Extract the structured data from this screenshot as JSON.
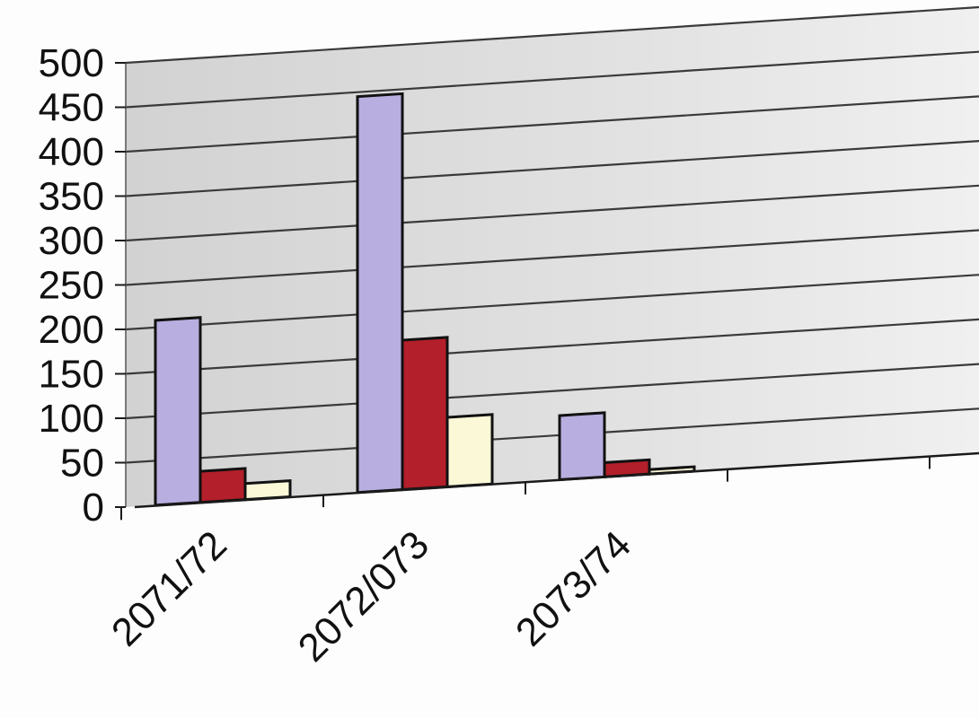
{
  "chart_data": {
    "type": "bar",
    "title": "",
    "xlabel": "",
    "ylabel": "",
    "categories": [
      "2071/72",
      "2072/073",
      "2073/74"
    ],
    "series": [
      {
        "values": [
          208,
          445,
          72
        ],
        "color": "#b9aee0"
      },
      {
        "values": [
          35,
          168,
          16
        ],
        "color": "#b31f2a"
      },
      {
        "values": [
          18,
          78,
          5
        ],
        "color": "#fbf8d8"
      }
    ],
    "ylim": [
      0,
      500
    ],
    "yticks": [
      0,
      50,
      100,
      150,
      200,
      250,
      300,
      350,
      400,
      450,
      500
    ],
    "grid": true,
    "legend": "none",
    "plot_background": "#d9d9d9",
    "gridline_color": "#3a3a3a"
  }
}
